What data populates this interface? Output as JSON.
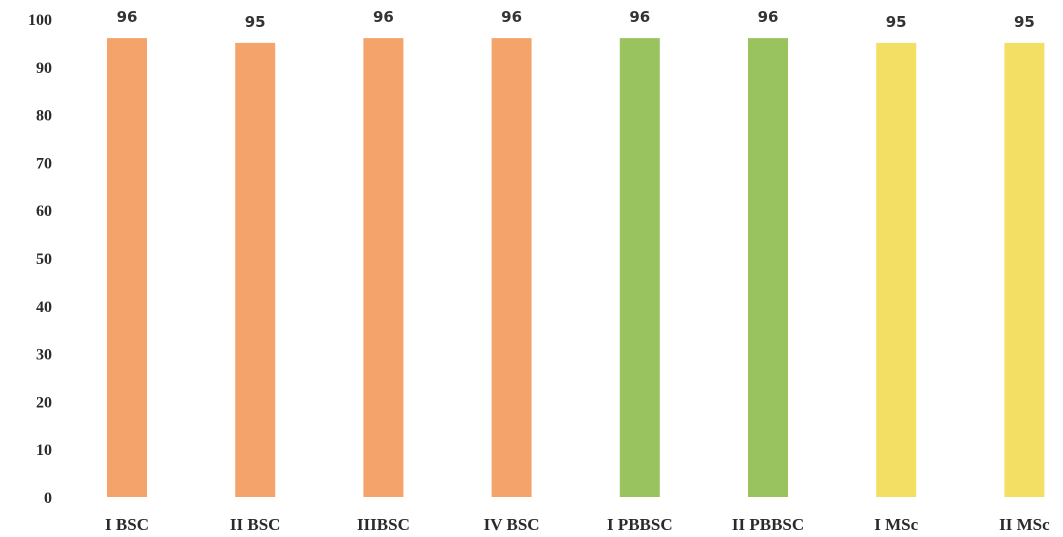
{
  "chart_data": {
    "type": "bar",
    "categories": [
      "I BSC",
      "II BSC",
      "IIIBSC",
      "IV BSC",
      "I PBBSC",
      "II PBBSC",
      "I MSc",
      "II MSc"
    ],
    "values": [
      96,
      95,
      96,
      96,
      96,
      96,
      95,
      95
    ],
    "data_labels": [
      "96",
      "95",
      "96",
      "96",
      "96",
      "96",
      "95",
      "95"
    ],
    "bar_colors": [
      "#f4a46a",
      "#f4a46a",
      "#f4a46a",
      "#f4a46a",
      "#98c35e",
      "#98c35e",
      "#f3df63",
      "#f3df63"
    ],
    "yticks": [
      0,
      10,
      20,
      30,
      40,
      50,
      60,
      70,
      80,
      90,
      100
    ],
    "ylim": [
      0,
      100
    ],
    "grid": false,
    "legend": "none"
  }
}
